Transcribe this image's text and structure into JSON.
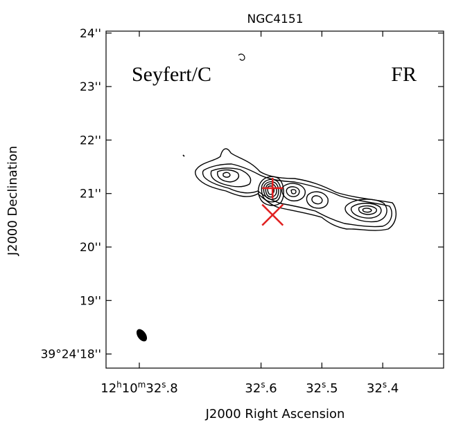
{
  "chart_data": {
    "type": "contour",
    "title": "NGC4151",
    "xlabel": "J2000 Right Ascension",
    "ylabel": "J2000 Declination",
    "x_ticks": [
      {
        "value": 32.8,
        "label_prefix": "12",
        "h": "h",
        "label_mid": "10",
        "m": "m",
        "label_main": "32",
        "s": "s",
        "label_frac": ".8"
      },
      {
        "value": 32.6,
        "label_main": "32",
        "s": "s",
        "label_frac": ".6"
      },
      {
        "value": 32.5,
        "label_main": "32",
        "s": "s",
        "label_frac": ".5"
      },
      {
        "value": 32.4,
        "label_main": "32",
        "s": "s",
        "label_frac": ".4"
      }
    ],
    "y_ticks": [
      {
        "value": 24,
        "label": "24''"
      },
      {
        "value": 23,
        "label": "23''"
      },
      {
        "value": 22,
        "label": "22''"
      },
      {
        "value": 21,
        "label": "21''"
      },
      {
        "value": 20,
        "label": "20''"
      },
      {
        "value": 19,
        "label": "19''"
      },
      {
        "value": 18,
        "label": "39°24'18''"
      }
    ],
    "annotations": {
      "left": "Seyfert/C",
      "right": "FR"
    },
    "markers": [
      {
        "type": "plus",
        "ra": 32.581,
        "dec": 21.1,
        "color": "#e02020"
      },
      {
        "type": "cross",
        "ra": 32.581,
        "dec": 20.6,
        "color": "#e02020"
      }
    ],
    "beam": {
      "ra": 32.796,
      "dec": 18.35
    },
    "grid": false
  }
}
